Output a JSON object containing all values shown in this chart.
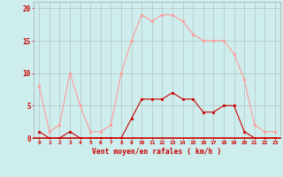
{
  "hours": [
    0,
    1,
    2,
    3,
    4,
    5,
    6,
    7,
    8,
    9,
    10,
    11,
    12,
    13,
    14,
    15,
    16,
    17,
    18,
    19,
    20,
    21,
    22,
    23
  ],
  "vent_moyen": [
    1,
    0,
    0,
    1,
    0,
    0,
    0,
    0,
    0,
    3,
    6,
    6,
    6,
    7,
    6,
    6,
    4,
    4,
    5,
    5,
    1,
    0,
    0,
    0
  ],
  "rafales": [
    8,
    1,
    2,
    10,
    5,
    1,
    1,
    2,
    10,
    15,
    19,
    18,
    19,
    19,
    18,
    16,
    15,
    15,
    15,
    13,
    9,
    2,
    1,
    1
  ],
  "color_moyen": "#cc0000",
  "color_rafales": "#ff9999",
  "bg_color": "#ceeeed",
  "grid_color": "#aaaaaa",
  "xlabel": "Vent moyen/en rafales ( km/h )",
  "ylabel_ticks": [
    0,
    5,
    10,
    15,
    20
  ],
  "ylim": [
    0,
    21
  ],
  "xlim": [
    -0.5,
    23.5
  ],
  "tick_color": "#cc0000",
  "xlabel_color": "#cc0000"
}
